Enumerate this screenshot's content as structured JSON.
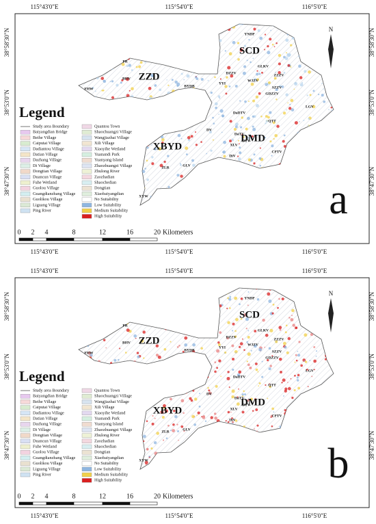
{
  "panels": [
    {
      "letter": "a"
    },
    {
      "letter": "b"
    }
  ],
  "longitude_labels": [
    "115°43'0\"E",
    "115°54'0\"E",
    "116°5'0\"E"
  ],
  "latitude_labels": [
    "38°58'30\"N",
    "38°53'0\"N",
    "38°47'30\"N"
  ],
  "north_arrow": "N",
  "legend": {
    "title": "Legend",
    "items": [
      {
        "label": "Study area Boundary",
        "color": "#777"
      },
      {
        "label": "Baiyangdian Bridge",
        "color": "#e7c9ef"
      },
      {
        "label": "Beihe Village",
        "color": "#f6d9d9"
      },
      {
        "label": "Caiputai Village",
        "color": "#d8ecd0"
      },
      {
        "label": "Dadiantou Village",
        "color": "#d6e6f5"
      },
      {
        "label": "Datian Village",
        "color": "#f4e5c8"
      },
      {
        "label": "Dazhang Village",
        "color": "#e8d6ee"
      },
      {
        "label": "Di Village",
        "color": "#dcefe6"
      },
      {
        "label": "Dongtian Village",
        "color": "#f1d9c9"
      },
      {
        "label": "Duancun Village",
        "color": "#d9e0f3"
      },
      {
        "label": "Fuhe Wetland",
        "color": "#eef0cf"
      },
      {
        "label": "Guolou Village",
        "color": "#f3d3e0"
      },
      {
        "label": "Guangdianzhang Village",
        "color": "#d3eef0"
      },
      {
        "label": "Guolikou Village",
        "color": "#e9e1d0"
      },
      {
        "label": "Liguang Village",
        "color": "#dbe9d5"
      },
      {
        "label": "Ping River",
        "color": "#cfe2f2"
      },
      {
        "label": "Quantou Town",
        "color": "#f0d8e6"
      },
      {
        "label": "Shaochuangzi Village",
        "color": "#e0ecd3"
      },
      {
        "label": "Wangjiazhai Village",
        "color": "#d7e3ef"
      },
      {
        "label": "Xili Village",
        "color": "#f2e6d2"
      },
      {
        "label": "Xiaoyihe Wetland",
        "color": "#e3d9ef"
      },
      {
        "label": "Yuanandi Park",
        "color": "#d5efe0"
      },
      {
        "label": "Yuanyang Island",
        "color": "#f0dcd0"
      },
      {
        "label": "Zhaozhuangzi Village",
        "color": "#dde4f2"
      },
      {
        "label": "Zhulong River",
        "color": "#eef2d6"
      },
      {
        "label": "Zaozhadian",
        "color": "#f3d8df"
      },
      {
        "label": "Shaochedian",
        "color": "#d8eef1"
      },
      {
        "label": "Dongtian",
        "color": "#ece3d3"
      },
      {
        "label": "Xiaobaiyangdian",
        "color": "#dfeedd"
      },
      {
        "label": "No Suitability",
        "color": "#ffffff"
      },
      {
        "label": "Low Suitability",
        "color": "#8fb6e0"
      },
      {
        "label": "Medium Suitability",
        "color": "#f1d04a"
      },
      {
        "label": "High Suitability",
        "color": "#d92020"
      }
    ]
  },
  "scale_bar": {
    "ticks": [
      "0",
      "2",
      "4",
      "8",
      "12",
      "16",
      "20"
    ],
    "unit": "Kilometers"
  },
  "map_labels": [
    "SCD",
    "ZZD",
    "XBYD",
    "DMD",
    "YNDP",
    "DZZV",
    "GLKV",
    "ZZZV",
    "WJZV",
    "SZZV",
    "GDZZV",
    "PR",
    "BHV",
    "FHW",
    "BYDB",
    "YYI",
    "DaDTV",
    "QTT",
    "LGV",
    "DV",
    "DaTV",
    "DTV",
    "XLV",
    "DiV",
    "CPTV",
    "ZLR",
    "GLV",
    "XYW"
  ]
}
